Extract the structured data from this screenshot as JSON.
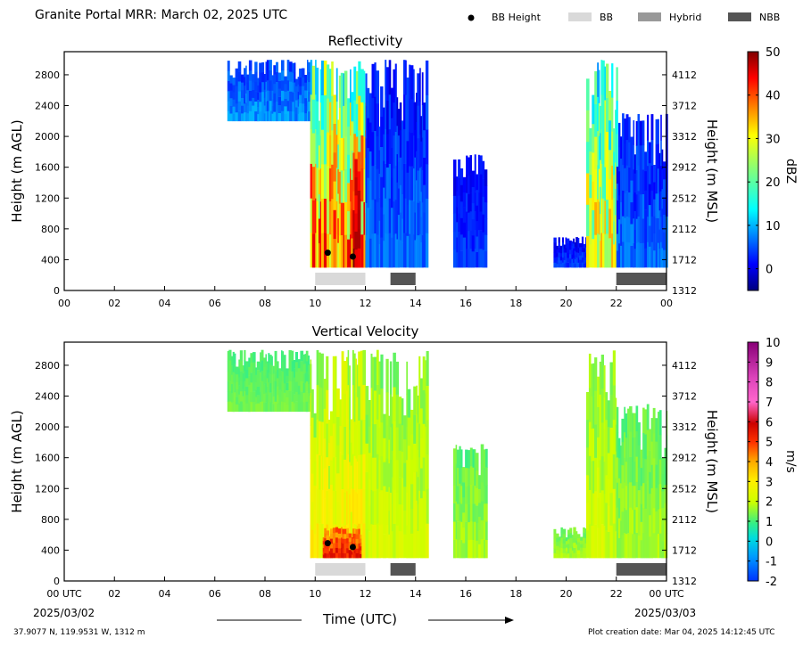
{
  "header": {
    "title": "Granite Portal MRR:  March 02, 2025 UTC"
  },
  "legend": {
    "items": [
      {
        "label": "BB Height",
        "kind": "marker",
        "color": "#000000"
      },
      {
        "label": "BB",
        "kind": "patch",
        "color": "#d9d9d9"
      },
      {
        "label": "Hybrid",
        "kind": "patch",
        "color": "#999999"
      },
      {
        "label": "NBB",
        "kind": "patch",
        "color": "#555555"
      }
    ]
  },
  "footer": {
    "location": "37.9077 N, 119.9531 W, 1312 m",
    "creation": "Plot creation date: Mar 04, 2025 14:12:45 UTC",
    "xlabel": "Time (UTC)",
    "start_date": "2025/03/02",
    "end_date": "2025/03/03"
  },
  "chart_data": [
    {
      "type": "heatmap",
      "title": "Reflectivity",
      "ylabel": "Height (m AGL)",
      "y2label": "Height (m MSL)",
      "colorbar_label": "dBZ",
      "colorbar_ticks": [
        0,
        10,
        20,
        30,
        40,
        50
      ],
      "colorbar_range": [
        -5,
        50
      ],
      "colormap": "jet",
      "x_ticks": [
        "00",
        "02",
        "04",
        "06",
        "08",
        "10",
        "12",
        "14",
        "16",
        "18",
        "20",
        "22",
        "00"
      ],
      "xlim_hours": [
        0,
        24
      ],
      "y_ticks": [
        0,
        400,
        800,
        1200,
        1600,
        2000,
        2400,
        2800
      ],
      "ylim": [
        0,
        3100
      ],
      "y2_ticks": [
        1312,
        1712,
        2112,
        2512,
        2912,
        3312,
        3712,
        4112
      ],
      "bb_height_points": [
        {
          "hour": 10.5,
          "height_m": 490
        },
        {
          "hour": 11.5,
          "height_m": 440
        }
      ],
      "bb_classification": [
        {
          "type": "BB",
          "start_hour": 10.0,
          "end_hour": 12.0
        },
        {
          "type": "NBB",
          "start_hour": 13.0,
          "end_hour": 14.0
        },
        {
          "type": "NBB",
          "start_hour": 22.0,
          "end_hour": 24.0
        }
      ],
      "echo_segments": [
        {
          "start_hour": 6.5,
          "end_hour": 9.8,
          "bottom_m": 2200,
          "top_m": 3000,
          "dbz_low": 0,
          "dbz_high": 10
        },
        {
          "start_hour": 9.8,
          "end_hour": 12.0,
          "bottom_m": 300,
          "top_m": 3000,
          "dbz_low": 5,
          "dbz_high": 45
        },
        {
          "start_hour": 11.5,
          "end_hour": 11.8,
          "bottom_m": 300,
          "top_m": 1800,
          "dbz_low": 35,
          "dbz_high": 50
        },
        {
          "start_hour": 12.0,
          "end_hour": 14.5,
          "bottom_m": 300,
          "top_m": 3000,
          "dbz_low": -2,
          "dbz_high": 8
        },
        {
          "start_hour": 15.5,
          "end_hour": 16.8,
          "bottom_m": 300,
          "top_m": 1800,
          "dbz_low": -2,
          "dbz_high": 5
        },
        {
          "start_hour": 19.5,
          "end_hour": 20.8,
          "bottom_m": 300,
          "top_m": 700,
          "dbz_low": -2,
          "dbz_high": 5
        },
        {
          "start_hour": 20.8,
          "end_hour": 22.0,
          "bottom_m": 300,
          "top_m": 3000,
          "dbz_low": 5,
          "dbz_high": 35
        },
        {
          "start_hour": 22.0,
          "end_hour": 24.0,
          "bottom_m": 300,
          "top_m": 2300,
          "dbz_low": -2,
          "dbz_high": 8
        }
      ]
    },
    {
      "type": "heatmap",
      "title": "Vertical Velocity",
      "ylabel": "Height (m AGL)",
      "y2label": "Height (m MSL)",
      "colorbar_label": "m/s",
      "colorbar_ticks": [
        -2,
        -1,
        0,
        1,
        2,
        3,
        4,
        5,
        6,
        7,
        8,
        9,
        10
      ],
      "colorbar_range": [
        -2,
        10
      ],
      "colormap": "velocity",
      "x_ticks": [
        "00 UTC",
        "02",
        "04",
        "06",
        "08",
        "10",
        "12",
        "14",
        "16",
        "18",
        "20",
        "22",
        "00 UTC"
      ],
      "xlim_hours": [
        0,
        24
      ],
      "y_ticks": [
        0,
        400,
        800,
        1200,
        1600,
        2000,
        2400,
        2800
      ],
      "ylim": [
        0,
        3100
      ],
      "y2_ticks": [
        1312,
        1712,
        2112,
        2512,
        2912,
        3312,
        3712,
        4112
      ],
      "bb_height_points": [
        {
          "hour": 10.5,
          "height_m": 490
        },
        {
          "hour": 11.5,
          "height_m": 440
        }
      ],
      "bb_classification": [
        {
          "type": "BB",
          "start_hour": 10.0,
          "end_hour": 12.0
        },
        {
          "type": "NBB",
          "start_hour": 13.0,
          "end_hour": 14.0
        },
        {
          "type": "NBB",
          "start_hour": 22.0,
          "end_hour": 24.0
        }
      ],
      "echo_segments": [
        {
          "start_hour": 6.5,
          "end_hour": 9.8,
          "bottom_m": 2200,
          "top_m": 3000,
          "vel_low": 0.8,
          "vel_high": 1.5
        },
        {
          "start_hour": 9.8,
          "end_hour": 12.0,
          "bottom_m": 300,
          "top_m": 3000,
          "vel_low": 1.0,
          "vel_high": 3.5
        },
        {
          "start_hour": 10.3,
          "end_hour": 11.8,
          "bottom_m": 300,
          "top_m": 700,
          "vel_low": 3.5,
          "vel_high": 6.0
        },
        {
          "start_hour": 12.0,
          "end_hour": 14.5,
          "bottom_m": 300,
          "top_m": 3000,
          "vel_low": 1.0,
          "vel_high": 2.5
        },
        {
          "start_hour": 15.5,
          "end_hour": 16.8,
          "bottom_m": 300,
          "top_m": 1800,
          "vel_low": 0.8,
          "vel_high": 2.0
        },
        {
          "start_hour": 19.5,
          "end_hour": 20.8,
          "bottom_m": 300,
          "top_m": 700,
          "vel_low": 1.0,
          "vel_high": 2.0
        },
        {
          "start_hour": 20.8,
          "end_hour": 22.0,
          "bottom_m": 300,
          "top_m": 3000,
          "vel_low": 1.0,
          "vel_high": 2.5
        },
        {
          "start_hour": 22.0,
          "end_hour": 24.0,
          "bottom_m": 300,
          "top_m": 2300,
          "vel_low": 0.8,
          "vel_high": 2.0
        }
      ]
    }
  ]
}
